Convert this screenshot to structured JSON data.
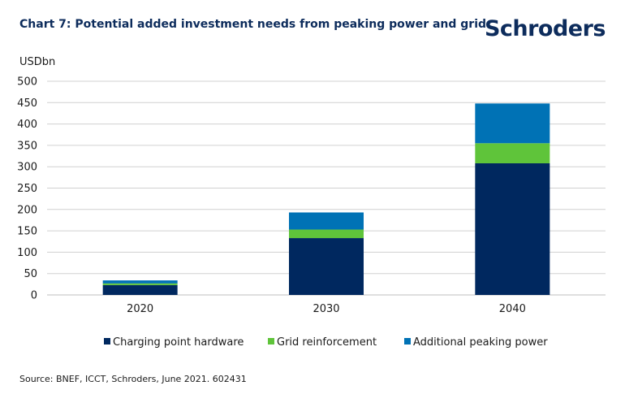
{
  "title": "Chart 7: Potential added investment needs from peaking power and grid",
  "brand": "Schroders",
  "source": "Source: BNEF, ICCT, Schroders, June 2021. 602431",
  "chart_data": {
    "type": "bar",
    "stacked": true,
    "title": "Chart 7: Potential added investment needs from peaking power and grid",
    "ylabel": "USDbn",
    "xlabel": "",
    "ylim": [
      0,
      500
    ],
    "yticks": [
      0,
      50,
      100,
      150,
      200,
      250,
      300,
      350,
      400,
      450,
      500
    ],
    "categories": [
      "2020",
      "2030",
      "2040"
    ],
    "grid": true,
    "legend_position": "bottom",
    "series": [
      {
        "name": "Charging point hardware",
        "color": "#00285f",
        "values": [
          23,
          133,
          308
        ]
      },
      {
        "name": "Grid reinforcement",
        "color": "#5fc43a",
        "values": [
          4,
          20,
          47
        ]
      },
      {
        "name": "Additional peaking power",
        "color": "#0072b5",
        "values": [
          7,
          40,
          93
        ]
      }
    ]
  }
}
